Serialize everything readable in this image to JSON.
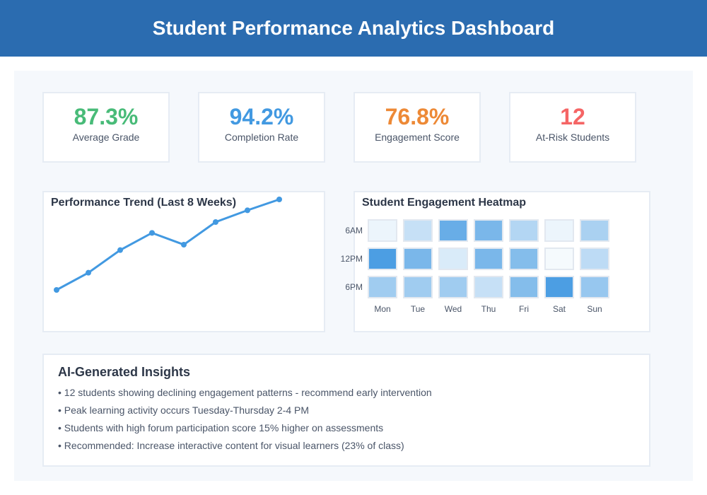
{
  "header": {
    "title": "Student Performance Analytics Dashboard"
  },
  "stats": [
    {
      "value": "87.3%",
      "label": "Average Grade",
      "color": "#48bb78"
    },
    {
      "value": "94.2%",
      "label": "Completion Rate",
      "color": "#4299e1"
    },
    {
      "value": "76.8%",
      "label": "Engagement Score",
      "color": "#ed8936"
    },
    {
      "value": "12",
      "label": "At-Risk Students",
      "color": "#f56565"
    }
  ],
  "trend": {
    "title": "Performance Trend (Last 8 Weeks)",
    "line_color": "#4299e1"
  },
  "heatmap": {
    "title": "Student Engagement Heatmap",
    "rows": [
      "6AM",
      "12PM",
      "6PM"
    ],
    "cols": [
      "Mon",
      "Tue",
      "Wed",
      "Thu",
      "Fri",
      "Sat",
      "Sun"
    ],
    "intensity": [
      [
        0.1,
        0.3,
        0.8,
        0.7,
        0.4,
        0.1,
        0.45
      ],
      [
        0.95,
        0.7,
        0.2,
        0.7,
        0.65,
        0.05,
        0.35
      ],
      [
        0.5,
        0.5,
        0.5,
        0.3,
        0.65,
        0.95,
        0.55
      ]
    ],
    "color": "#4299e1"
  },
  "chart_data": {
    "type": "line",
    "title": "Performance Trend (Last 8 Weeks)",
    "x": [
      1,
      2,
      3,
      4,
      5,
      6,
      7,
      8
    ],
    "values": [
      0.0,
      0.19,
      0.44,
      0.63,
      0.5,
      0.75,
      0.88,
      1.0
    ],
    "xlabel": "",
    "ylabel": ""
  },
  "insights": {
    "title": "AI-Generated Insights",
    "items": [
      "• 12 students showing declining engagement patterns - recommend early intervention",
      "• Peak learning activity occurs Tuesday-Thursday 2-4 PM",
      "• Students with high forum participation score 15% higher on assessments",
      "• Recommended: Increase interactive content for visual learners (23% of class)"
    ]
  }
}
